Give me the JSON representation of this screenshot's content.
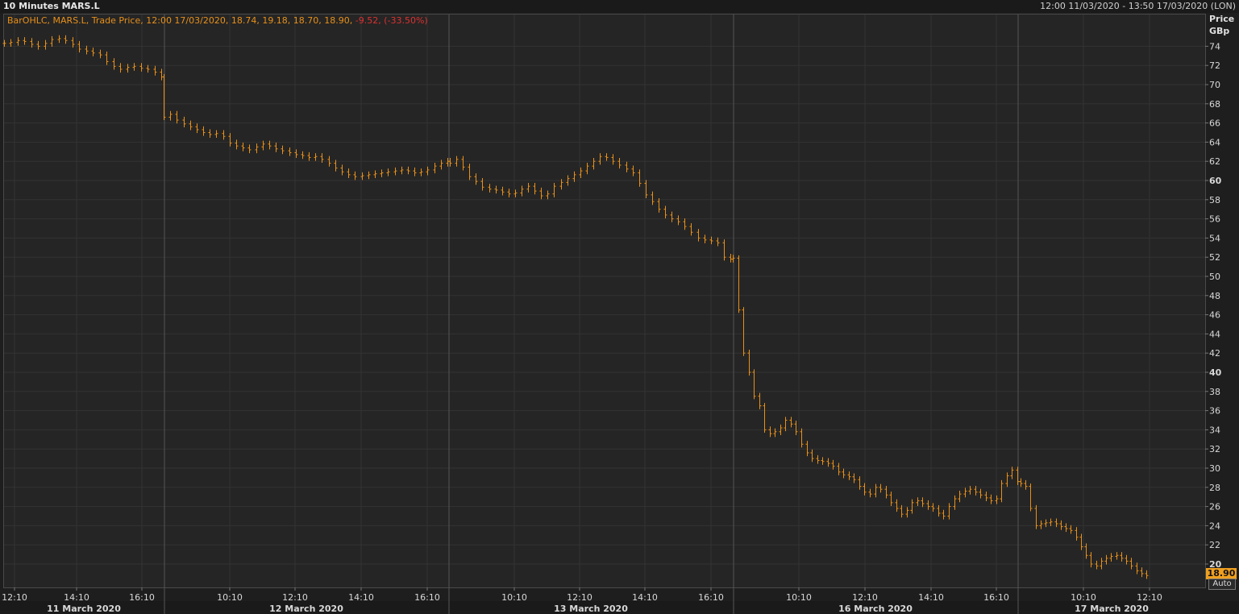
{
  "header": {
    "title": "10 Minutes MARS.L",
    "range": "12:00 11/03/2020 - 13:50 17/03/2020 (LON)"
  },
  "legend": {
    "main": "BarOHLC, MARS.L, Trade Price, 12:00 17/03/2020, 18.74, 19.18, 18.70, 18.90,",
    "change": " -9.52, (-33.50%)"
  },
  "axis": {
    "price_label": "Price",
    "unit_label": "GBp",
    "last_price": "18.90",
    "auto_label": "Auto"
  },
  "colors": {
    "series": "#e8901a",
    "last_price_bg": "#f0a020",
    "change_negative": "#e03030"
  },
  "chart_data": {
    "type": "ohlc",
    "title": "10 Minutes MARS.L",
    "ylabel": "Price GBp",
    "ylim": [
      18,
      76
    ],
    "y_ticks": [
      20,
      22,
      24,
      26,
      28,
      30,
      32,
      34,
      36,
      38,
      40,
      42,
      44,
      46,
      48,
      50,
      52,
      54,
      56,
      58,
      60,
      62,
      64,
      66,
      68,
      70,
      72,
      74
    ],
    "y_bold_ticks": [
      20,
      40,
      60
    ],
    "x_time_ticks": [
      "12:10",
      "14:10",
      "16:10",
      "10:10",
      "12:10",
      "14:10",
      "16:10",
      "10:10",
      "12:10",
      "14:10",
      "16:10",
      "10:10",
      "12:10",
      "14:10",
      "16:10",
      "10:10",
      "12:10"
    ],
    "x_day_labels": [
      "11 March 2020",
      "12 March 2020",
      "13 March 2020",
      "16 March 2020",
      "17 March 2020"
    ],
    "grid": true,
    "series": [
      {
        "name": "MARS.L",
        "close_path": [
          74.3,
          74.4,
          74.6,
          74.5,
          74.2,
          74.0,
          74.3,
          74.7,
          74.8,
          74.6,
          74.2,
          73.7,
          73.5,
          73.3,
          73.1,
          72.4,
          71.9,
          71.6,
          71.8,
          71.9,
          71.7,
          71.6,
          71.3,
          70.8,
          66.6,
          66.9,
          66.3,
          65.9,
          65.6,
          65.3,
          65.0,
          64.8,
          64.9,
          64.6,
          63.9,
          63.6,
          63.4,
          63.2,
          63.5,
          63.8,
          63.6,
          63.3,
          63.1,
          62.9,
          62.7,
          62.6,
          62.4,
          62.5,
          62.2,
          61.8,
          61.3,
          60.9,
          60.6,
          60.4,
          60.5,
          60.6,
          60.7,
          60.8,
          60.9,
          61.0,
          61.1,
          61.0,
          60.8,
          60.9,
          61.1,
          61.5,
          61.8,
          62.0,
          61.8,
          62.2,
          61.4,
          60.4,
          59.9,
          59.3,
          59.1,
          59.0,
          58.8,
          58.6,
          58.7,
          59.1,
          59.4,
          58.9,
          58.4,
          58.6,
          59.4,
          59.8,
          60.2,
          60.6,
          61.0,
          61.5,
          62.0,
          62.5,
          62.4,
          62.0,
          61.6,
          61.2,
          60.8,
          59.7,
          58.5,
          57.8,
          57.0,
          56.4,
          56.0,
          55.7,
          55.2,
          54.6,
          54.0,
          53.8,
          53.7,
          53.5,
          52.0,
          51.8,
          51.9,
          46.5,
          42.0,
          40.0,
          37.5,
          36.5,
          34.0,
          33.6,
          33.8,
          34.2,
          35.0,
          34.6,
          33.8,
          32.5,
          31.6,
          31.0,
          30.8,
          30.7,
          30.5,
          30.2,
          29.6,
          29.3,
          29.1,
          28.8,
          28.1,
          27.5,
          27.3,
          28.0,
          27.8,
          27.2,
          26.4,
          25.8,
          25.2,
          25.6,
          26.4,
          26.6,
          26.3,
          26.0,
          25.8,
          25.3,
          25.0,
          26.0,
          26.8,
          27.3,
          27.6,
          27.8,
          27.5,
          27.2,
          26.9,
          26.6,
          26.8,
          28.4,
          29.2,
          29.8,
          28.6,
          28.4,
          28.1,
          25.8,
          24.0,
          24.2,
          24.3,
          24.4,
          24.2,
          23.9,
          23.7,
          23.5,
          22.8,
          21.8,
          20.9,
          20.0,
          19.8,
          20.3,
          20.6,
          20.8,
          20.9,
          20.6,
          20.3,
          19.8,
          19.3,
          19.0,
          18.8,
          18.9
        ]
      }
    ],
    "last": {
      "time": "12:00 17/03/2020",
      "open": 18.74,
      "high": 19.18,
      "low": 18.7,
      "close": 18.9
    }
  }
}
